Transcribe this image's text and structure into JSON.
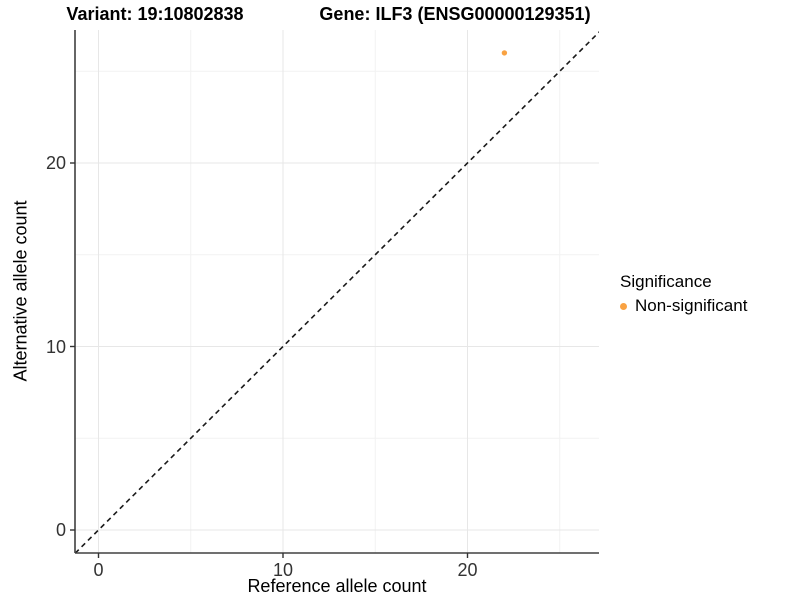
{
  "chart_data": {
    "type": "scatter",
    "titles": {
      "left": "Variant: 19:10802838",
      "right": "Gene: ILF3 (ENSG00000129351)"
    },
    "xlabel": "Reference allele count",
    "ylabel": "Alternative allele count",
    "x_ticks": [
      0,
      10,
      20
    ],
    "y_ticks": [
      0,
      10,
      20
    ],
    "x_minor_gridlines": [
      5,
      15,
      25
    ],
    "y_minor_gridlines": [
      5,
      15,
      25
    ],
    "xlim": [
      -1.3,
      28.2
    ],
    "ylim": [
      -1.4,
      27.3
    ],
    "grid": "major and minor gridlines on, light gray, white panel background",
    "identity_line": {
      "style": "dashed",
      "slope": 1,
      "intercept": 0,
      "color": "#1a1a1a"
    },
    "series": [
      {
        "name": "Non-significant",
        "points": [
          {
            "x": 22,
            "y": 26
          }
        ]
      }
    ],
    "legend": {
      "title": "Significance",
      "position": "right",
      "items": [
        {
          "label": "Non-significant",
          "color": "#F9A242"
        }
      ]
    },
    "colors": {
      "point": "#F9A242",
      "grid_major": "#E7E7E7",
      "grid_minor": "#F2F2F2",
      "axis_line": "#404040",
      "tick_mark": "#333333",
      "title_text": "#000000",
      "tick_text": "#333333"
    }
  }
}
